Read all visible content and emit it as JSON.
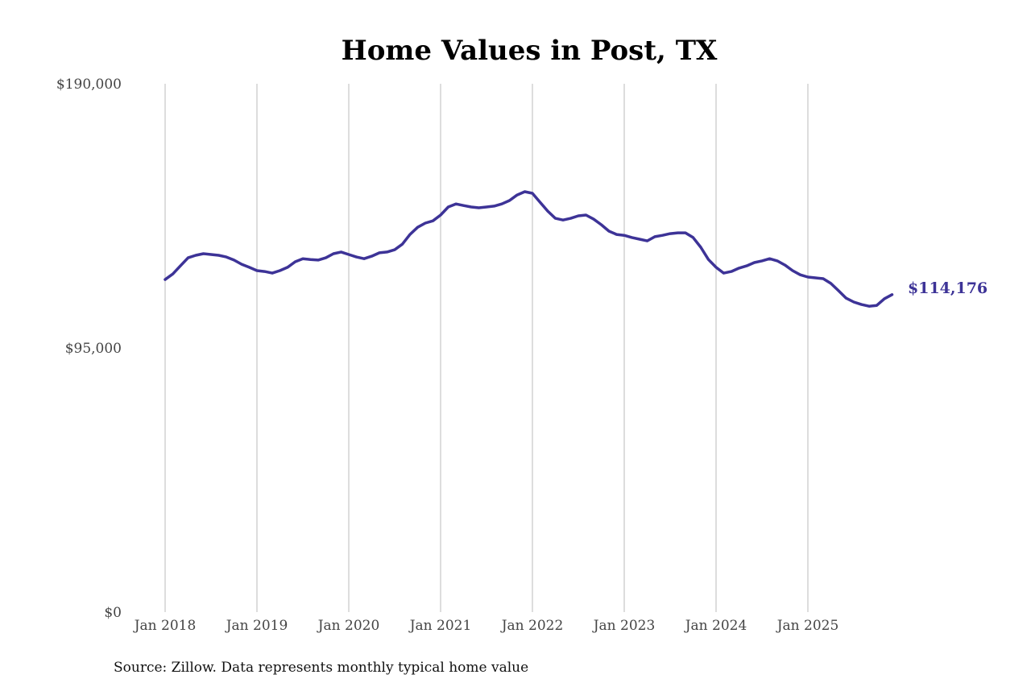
{
  "chart_data": {
    "type": "line",
    "title": "Home Values in Post, TX",
    "xlabel": "",
    "ylabel": "",
    "ylim": [
      0,
      190000
    ],
    "y_ticks": [
      0,
      95000,
      190000
    ],
    "y_tick_labels": [
      "$0",
      "$95,000",
      "$190,000"
    ],
    "x_tick_labels": [
      "Jan 2018",
      "Jan 2019",
      "Jan 2020",
      "Jan 2021",
      "Jan 2022",
      "Jan 2023",
      "Jan 2024",
      "Jan 2025"
    ],
    "x_start": "Jan 2018",
    "x_end": "Dec 2025",
    "grid": "vertical",
    "line_color": "#3d3397",
    "end_label": "$114,176",
    "series": [
      {
        "name": "Typical home value",
        "values": [
          119600,
          121600,
          124500,
          127400,
          128300,
          128900,
          128600,
          128300,
          127700,
          126600,
          125100,
          124000,
          122800,
          122500,
          121900,
          122800,
          124000,
          126000,
          127100,
          126800,
          126600,
          127400,
          128900,
          129500,
          128600,
          127700,
          127100,
          128000,
          129200,
          129500,
          130300,
          132300,
          135800,
          138400,
          139900,
          140700,
          142800,
          145700,
          146800,
          146200,
          145700,
          145400,
          145700,
          146000,
          146800,
          148000,
          150000,
          151200,
          150600,
          147400,
          144200,
          141600,
          141000,
          141600,
          142500,
          142800,
          141300,
          139300,
          137000,
          135800,
          135500,
          134700,
          134100,
          133500,
          135000,
          135500,
          136100,
          136400,
          136400,
          134700,
          131200,
          126800,
          124000,
          121900,
          122500,
          123700,
          124500,
          125700,
          126300,
          127100,
          126300,
          124800,
          122800,
          121300,
          120500,
          120200,
          119900,
          118200,
          115600,
          112900,
          111500,
          110600,
          110000,
          110300,
          112700,
          114176
        ]
      }
    ],
    "source": "Source: Zillow. Data represents monthly typical home value"
  }
}
